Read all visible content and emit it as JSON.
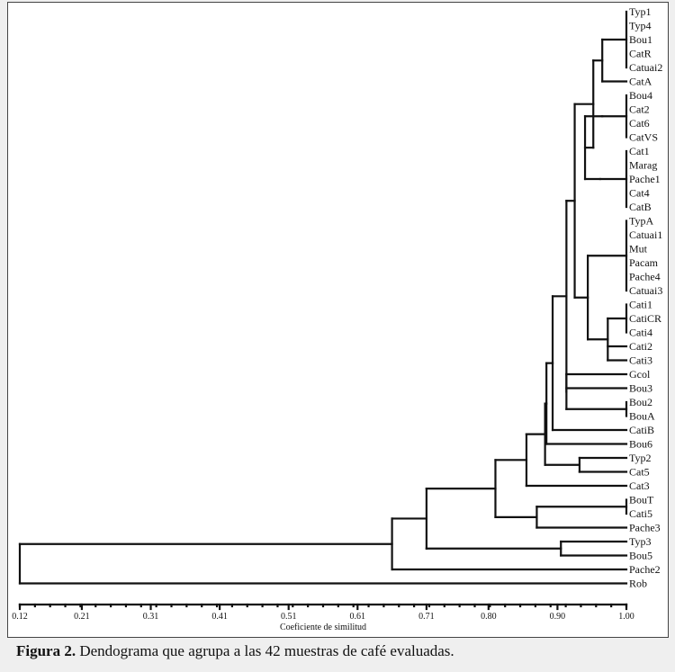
{
  "chart_data": {
    "type": "dendrogram",
    "xlabel": "Coeficiente de similitud",
    "xlim": [
      0.12,
      1.0
    ],
    "ticks": [
      "0.12",
      "0.21",
      "0.31",
      "0.41",
      "0.51",
      "0.61",
      "0.71",
      "0.80",
      "0.90",
      "1.00"
    ],
    "leaves": [
      "Typ1",
      "Typ4",
      "Bou1",
      "CatR",
      "Catuai2",
      "CatA",
      "Bou4",
      "Cat2",
      "Cat6",
      "CatVS",
      "Cat1",
      "Marag",
      "Pache1",
      "Cat4",
      "CatB",
      "TypA",
      "Catuai1",
      "Mut",
      "Pacam",
      "Pache4",
      "Catuai3",
      "Cati1",
      "CatiCR",
      "Cati4",
      "Cati2",
      "Cati3",
      "Gcol",
      "Bou3",
      "Bou2",
      "BouA",
      "CatiB",
      "Bou6",
      "Typ2",
      "Cat5",
      "Cat3",
      "BouT",
      "Cati5",
      "Pache3",
      "Typ3",
      "Bou5",
      "Pache2",
      "Rob"
    ],
    "clusters": [
      {
        "members": [
          "Typ1",
          "Typ4",
          "Bou1",
          "CatR",
          "Catuai2"
        ],
        "similarity": 1.0
      },
      {
        "members": [
          "Typ1",
          "Typ4",
          "Bou1",
          "CatR",
          "Catuai2",
          "CatA"
        ],
        "similarity": 0.965
      },
      {
        "members": [
          "Bou4",
          "Cat2",
          "Cat6",
          "CatVS"
        ],
        "similarity": 0.965
      },
      {
        "members": [
          "Cat1",
          "Marag",
          "Pache1",
          "Cat4",
          "CatB"
        ],
        "similarity": 1.0
      },
      {
        "members": [
          "Bou4",
          "Cat2",
          "Cat6",
          "CatVS",
          "Cat1",
          "Marag",
          "Pache1",
          "Cat4",
          "CatB"
        ],
        "similarity": 0.962
      },
      {
        "members": [
          "Bou4",
          "Cat2",
          "Cat6",
          "CatVS",
          "Cat1",
          "Marag",
          "Pache1",
          "Cat4",
          "CatB"
        ],
        "similarity": 0.94
      },
      {
        "members": [
          "Typ1",
          "Typ4",
          "Bou1",
          "CatR",
          "Catuai2",
          "CatA",
          "Bou4",
          "Cat2",
          "Cat6",
          "CatVS",
          "Cat1",
          "Marag",
          "Pache1",
          "Cat4",
          "CatB"
        ],
        "similarity": 0.952
      },
      {
        "members": [
          "TypA",
          "Catuai1",
          "Mut",
          "Pacam",
          "Pache4",
          "Catuai3"
        ],
        "similarity": 1.0
      },
      {
        "members": [
          "Cati1",
          "CatiCR",
          "Cati4"
        ],
        "similarity": 1.0
      },
      {
        "members": [
          "Cati1",
          "CatiCR",
          "Cati4",
          "Cati2",
          "Cati3"
        ],
        "similarity": 0.973
      },
      {
        "members": [
          "TypA",
          "Catuai1",
          "Mut",
          "Pacam",
          "Pache4",
          "Catuai3",
          "Cati1",
          "CatiCR",
          "Cati4",
          "Cati2",
          "Cati3"
        ],
        "similarity": 0.944
      },
      {
        "members": [
          "Typ1",
          "Typ4",
          "Bou1",
          "CatR",
          "Catuai2",
          "CatA",
          "Bou4",
          "Cat2",
          "Cat6",
          "CatVS",
          "Cat1",
          "Marag",
          "Pache1",
          "Cat4",
          "CatB",
          "TypA",
          "Catuai1",
          "Mut",
          "Pacam",
          "Pache4",
          "Catuai3",
          "Cati1",
          "CatiCR",
          "Cati4",
          "Cati2",
          "Cati3"
        ],
        "similarity": 0.925
      },
      {
        "members": [
          "Bou2",
          "BouA"
        ],
        "similarity": 1.0
      },
      {
        "members": [
          "Gcol",
          "Bou3",
          "Bou2",
          "BouA"
        ],
        "similarity": 0.912
      },
      {
        "members": [
          "Typ2",
          "Cat5"
        ],
        "similarity": 0.932
      },
      {
        "members": [
          "BouT",
          "Cati5"
        ],
        "similarity": 1.0
      },
      {
        "members": [
          "BouT",
          "Cati5",
          "Pache3"
        ],
        "similarity": 0.87
      },
      {
        "members": [
          "Typ3",
          "Bou5"
        ],
        "similarity": 0.905
      },
      {
        "members": [
          "all except Rob"
        ],
        "similarity": 0.66
      },
      {
        "members": [
          "all"
        ],
        "similarity": 0.12
      }
    ],
    "caption_label": "Figura 2.",
    "caption_text": " Dendograma que agrupa a las 42 muestras de café evaluadas."
  }
}
